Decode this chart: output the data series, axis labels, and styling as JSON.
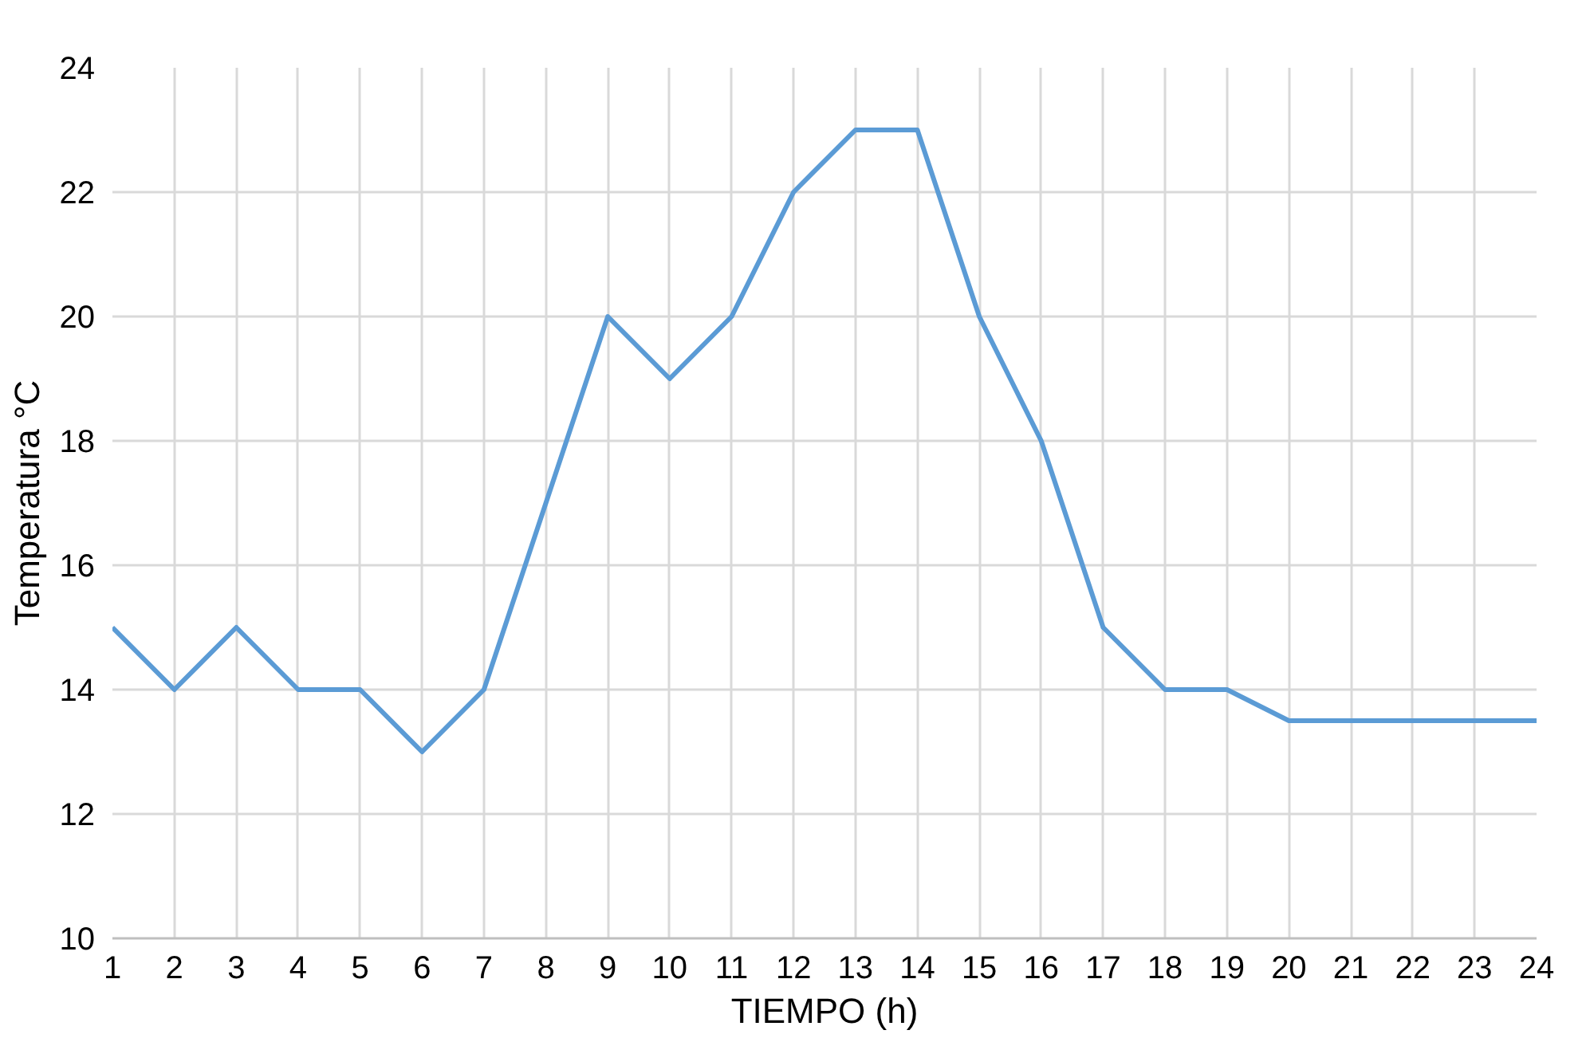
{
  "chart_data": {
    "type": "line",
    "xlabel": "TIEMPO (h)",
    "ylabel": "Temperatura °C",
    "x": [
      1,
      2,
      3,
      4,
      5,
      6,
      7,
      8,
      9,
      10,
      11,
      12,
      13,
      14,
      15,
      16,
      17,
      18,
      19,
      20,
      21,
      22,
      23,
      24
    ],
    "series": [
      {
        "color": "#5b9bd5",
        "values": [
          15,
          14,
          15,
          14,
          14,
          13,
          14,
          17,
          20,
          19,
          20,
          22,
          23,
          23,
          20,
          18,
          15,
          14,
          14,
          13.5,
          13.5,
          13.5,
          13.5,
          13.5
        ]
      }
    ],
    "xlim": [
      1,
      24
    ],
    "xticks": [
      1,
      2,
      3,
      4,
      5,
      6,
      7,
      8,
      9,
      10,
      11,
      12,
      13,
      14,
      15,
      16,
      17,
      18,
      19,
      20,
      21,
      22,
      23,
      24
    ],
    "ylim": [
      10,
      24
    ],
    "yticks": [
      10,
      12,
      14,
      16,
      18,
      20,
      22,
      24
    ],
    "grid": true,
    "marker": "none",
    "line_style": "solid"
  }
}
